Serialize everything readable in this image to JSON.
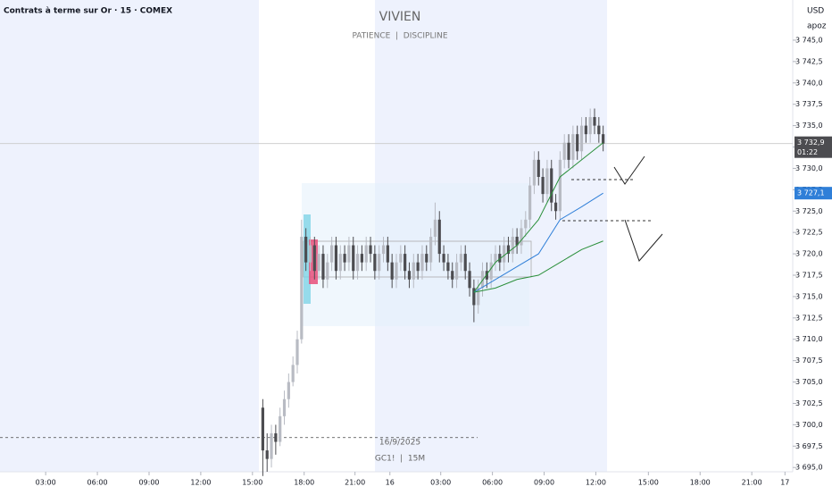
{
  "chart_data": {
    "type": "candlestick",
    "title": "Contrats à terme sur Or · 15 · COMEX",
    "watermark": {
      "name": "VIVIEN",
      "motto": "PATIENCE  |  DISCIPLINE"
    },
    "currency": "USD",
    "unit_label": "apoz",
    "date_label": "16/9/2025",
    "symbol_label": "GC1!  |  15M",
    "colors": {
      "up": "#b8bbc3",
      "down": "#4c4c50",
      "grid": "#f0f3fa"
    },
    "xlim": [
      0,
      184
    ],
    "ylim": [
      3692.2,
      3749.7
    ],
    "xticks": [
      {
        "value": 10.6,
        "label": "03:00"
      },
      {
        "value": 22.6,
        "label": "06:00"
      },
      {
        "value": 34.6,
        "label": "09:00"
      },
      {
        "value": 46.6,
        "label": "12:00"
      },
      {
        "value": 58.6,
        "label": "15:00"
      },
      {
        "value": 70.6,
        "label": "18:00"
      },
      {
        "value": 82.4,
        "label": "21:00"
      },
      {
        "value": 90.5,
        "label": "16"
      },
      {
        "value": 102.3,
        "label": "03:00"
      },
      {
        "value": 114.3,
        "label": "06:00"
      },
      {
        "value": 126.3,
        "label": "09:00"
      },
      {
        "value": 138.3,
        "label": "12:00"
      },
      {
        "value": 150.5,
        "label": "15:00"
      },
      {
        "value": 162.5,
        "label": "18:00"
      },
      {
        "value": 174.5,
        "label": "21:00"
      },
      {
        "value": 182.2,
        "label": "17"
      }
    ],
    "yticks": [
      {
        "value": 3695,
        "label": "3 695,0"
      },
      {
        "value": 3697.5,
        "label": "3 697,5"
      },
      {
        "value": 3700,
        "label": "3 700,0"
      },
      {
        "value": 3702.5,
        "label": "3 702,5"
      },
      {
        "value": 3705,
        "label": "3 705,0"
      },
      {
        "value": 3707.5,
        "label": "3 707,5"
      },
      {
        "value": 3710,
        "label": "3 710,0"
      },
      {
        "value": 3712.5,
        "label": "3 712,5"
      },
      {
        "value": 3715,
        "label": "3 715,0"
      },
      {
        "value": 3717.5,
        "label": "3 717,5"
      },
      {
        "value": 3720,
        "label": "3 720,0"
      },
      {
        "value": 3722.5,
        "label": "3 722,5"
      },
      {
        "value": 3725,
        "label": "3 725,0"
      },
      {
        "value": 3727.5,
        "label": "3 727,5"
      },
      {
        "value": 3730,
        "label": "3 730,0"
      },
      {
        "value": 3732.5,
        "label": "3 732,5"
      },
      {
        "value": 3735,
        "label": "3 735,0"
      },
      {
        "value": 3737.5,
        "label": "3 737,5"
      },
      {
        "value": 3740,
        "label": "3 740,0"
      },
      {
        "value": 3742.5,
        "label": "3 742,5"
      },
      {
        "value": 3745,
        "label": "3 745,0"
      }
    ],
    "last_price": {
      "value": 3732.9,
      "label": "3 732,9"
    },
    "countdown": "01:22",
    "ma_price": {
      "value": 3727.1,
      "label": "3 727,1"
    },
    "reference_level": 3698.5,
    "candles": {
      "x": [
        61,
        62,
        63,
        64,
        65,
        66,
        67,
        68,
        69,
        70,
        71,
        72,
        73,
        74,
        75,
        76,
        77,
        78,
        79,
        80,
        81,
        82,
        83,
        84,
        85,
        86,
        87,
        88,
        89,
        90,
        91,
        92,
        93,
        94,
        95,
        96,
        97,
        98,
        99,
        100,
        101,
        102,
        103,
        104,
        105,
        106,
        107,
        108,
        109,
        110,
        111,
        112,
        113,
        114,
        115,
        116,
        117,
        118,
        119,
        120,
        121,
        122,
        123,
        124,
        125,
        126,
        127,
        128,
        129,
        130,
        131,
        132,
        133,
        134,
        135,
        136,
        137,
        138,
        139,
        140
      ],
      "open": [
        3702,
        3697,
        3696,
        3699,
        3698,
        3701,
        3703,
        3705,
        3707,
        3710,
        3722,
        3719,
        3721,
        3718,
        3720,
        3717,
        3719,
        3721,
        3718,
        3720,
        3719,
        3721,
        3718,
        3720,
        3719,
        3721,
        3720,
        3718,
        3720,
        3721,
        3719,
        3717,
        3719,
        3720,
        3718,
        3717,
        3719,
        3718,
        3720,
        3719,
        3722,
        3724,
        3720,
        3719,
        3718,
        3717,
        3719,
        3720,
        3718,
        3716,
        3714,
        3716,
        3718,
        3717,
        3719,
        3720,
        3719,
        3721,
        3720,
        3722,
        3721,
        3723,
        3724,
        3728,
        3731,
        3729,
        3727,
        3730,
        3726,
        3725,
        3731,
        3733,
        3731,
        3734,
        3732,
        3735,
        3734,
        3736,
        3735,
        3734
      ],
      "high": [
        3703,
        3699,
        3700,
        3700,
        3702,
        3704,
        3706,
        3708,
        3711,
        3724,
        3723,
        3722,
        3722,
        3721,
        3721,
        3720,
        3722,
        3722,
        3721,
        3721,
        3722,
        3722,
        3721,
        3721,
        3722,
        3722,
        3721,
        3721,
        3722,
        3722,
        3720,
        3720,
        3721,
        3721,
        3719,
        3720,
        3720,
        3721,
        3721,
        3723,
        3726,
        3725,
        3721,
        3720,
        3719,
        3720,
        3721,
        3721,
        3719,
        3717,
        3717,
        3719,
        3719,
        3720,
        3721,
        3721,
        3722,
        3722,
        3723,
        3723,
        3724,
        3725,
        3729,
        3732,
        3732,
        3730,
        3731,
        3731,
        3727,
        3732,
        3734,
        3734,
        3735,
        3735,
        3736,
        3736,
        3737,
        3737,
        3736,
        3735
      ],
      "low": [
        3694,
        3694.5,
        3695,
        3696.5,
        3697.5,
        3700,
        3702,
        3704.5,
        3706,
        3709.5,
        3718,
        3718,
        3717,
        3717,
        3716,
        3716,
        3718,
        3717,
        3717,
        3718,
        3718,
        3717,
        3717,
        3718,
        3718,
        3719,
        3717,
        3717,
        3719,
        3718,
        3716,
        3716,
        3718,
        3717,
        3716,
        3716,
        3717,
        3717,
        3718,
        3718,
        3721,
        3719,
        3718,
        3717,
        3716,
        3716,
        3718,
        3717,
        3715,
        3712,
        3713,
        3715,
        3716,
        3716,
        3718,
        3718,
        3718,
        3719,
        3719,
        3720,
        3720,
        3722,
        3723,
        3727,
        3728,
        3726,
        3726,
        3725,
        3724,
        3724,
        3730,
        3730,
        3730,
        3731,
        3731,
        3733,
        3733,
        3734,
        3733,
        3732
      ],
      "close": [
        3697,
        3696,
        3699,
        3698,
        3701,
        3703,
        3705,
        3707,
        3710,
        3722,
        3719,
        3721,
        3718,
        3720,
        3717,
        3719,
        3721,
        3718,
        3720,
        3719,
        3721,
        3718,
        3720,
        3719,
        3721,
        3720,
        3718,
        3720,
        3721,
        3719,
        3717,
        3719,
        3720,
        3718,
        3717,
        3719,
        3718,
        3720,
        3719,
        3722,
        3724,
        3720,
        3719,
        3718,
        3717,
        3719,
        3720,
        3718,
        3716,
        3714,
        3716,
        3718,
        3717,
        3719,
        3720,
        3719,
        3721,
        3720,
        3722,
        3721,
        3723,
        3724,
        3728,
        3731,
        3729,
        3727,
        3730,
        3726,
        3725,
        3731,
        3733,
        3731,
        3734,
        3732,
        3735,
        3734,
        3736,
        3735,
        3734,
        3732.9
      ]
    },
    "lines": [
      {
        "color": "#2a8f3a",
        "x": [
          110,
          115,
          120,
          125,
          130,
          135,
          140
        ],
        "values": [
          3715.5,
          3719,
          3721,
          3724,
          3729,
          3731,
          3733
        ]
      },
      {
        "color": "#2f7fd8",
        "x": [
          110,
          115,
          120,
          125,
          130,
          135,
          140
        ],
        "values": [
          3715.5,
          3717,
          3718.5,
          3720,
          3724,
          3725.5,
          3727.1
        ]
      },
      {
        "color": "#2a8f3a",
        "x": [
          110,
          115,
          120,
          125,
          130,
          135,
          140
        ],
        "values": [
          3715.5,
          3716,
          3717,
          3717.5,
          3719,
          3720.5,
          3721.5
        ]
      }
    ]
  }
}
